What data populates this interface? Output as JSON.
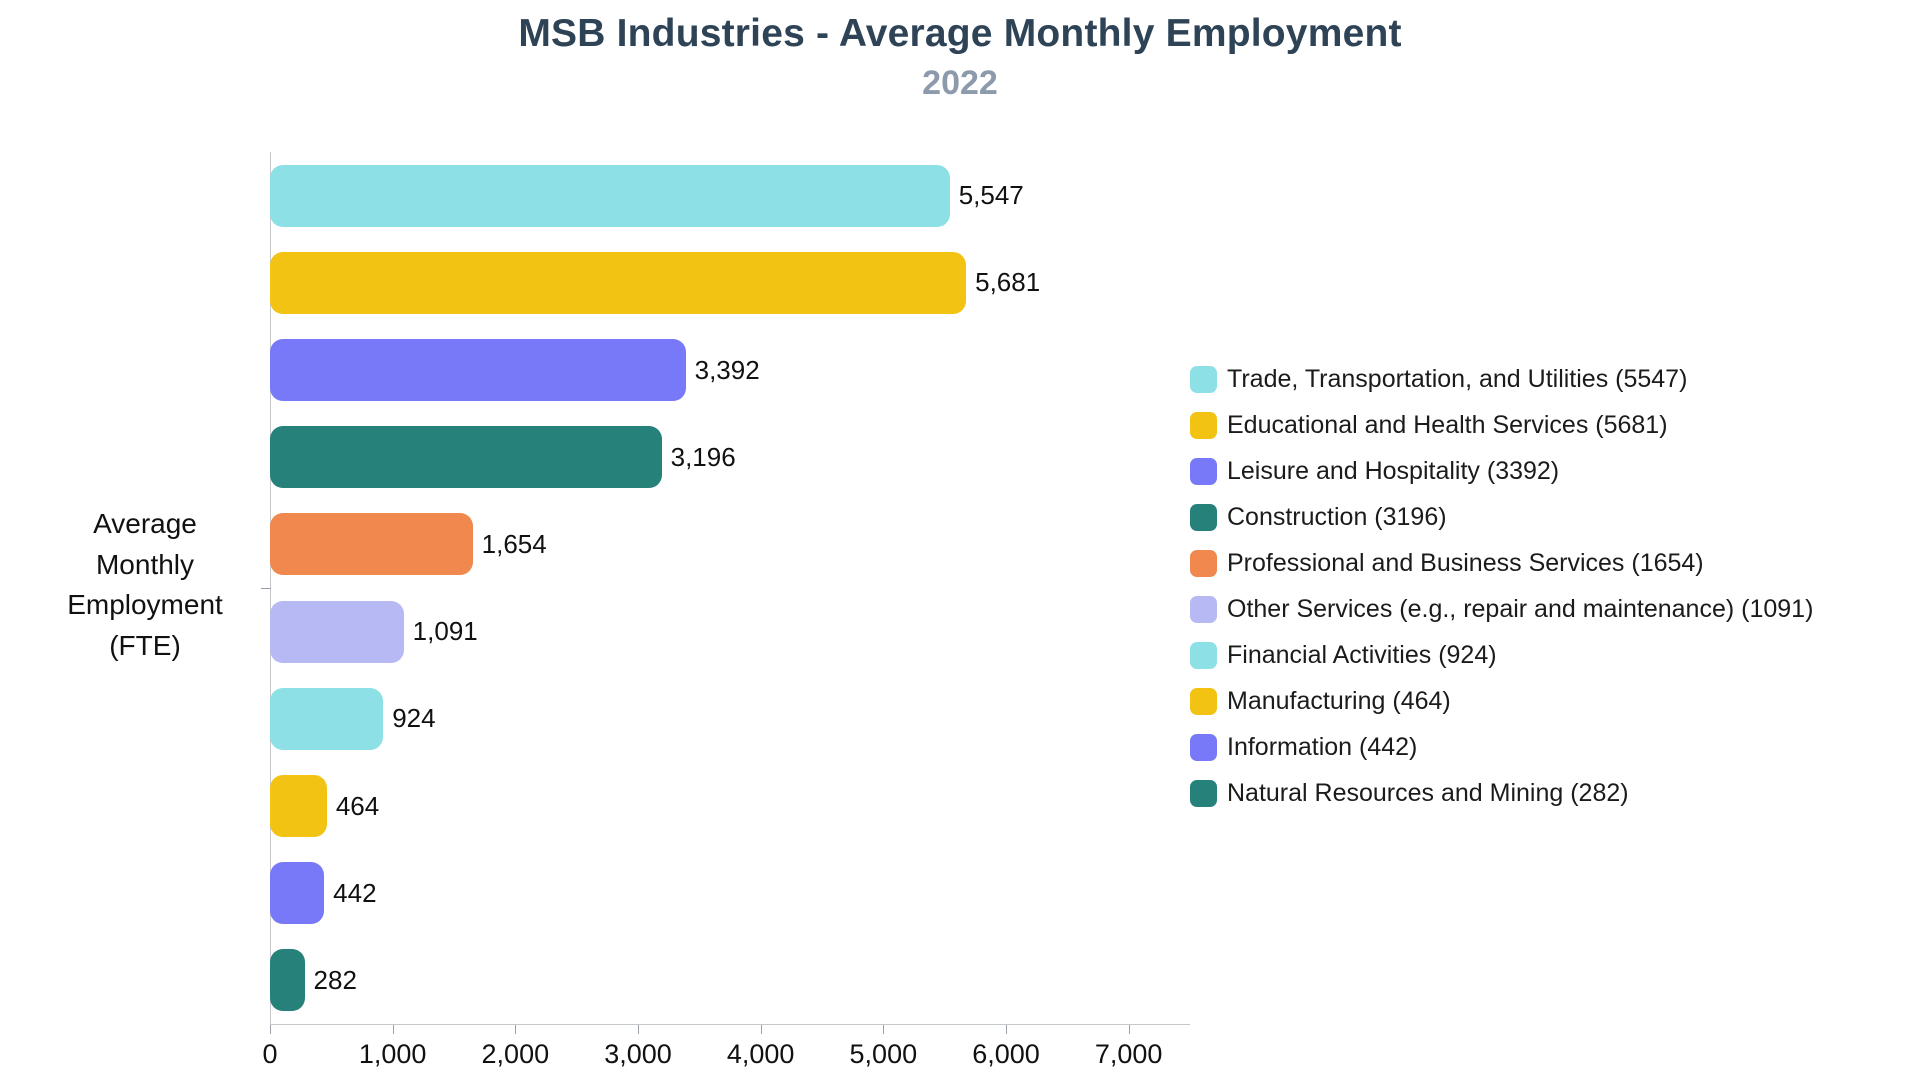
{
  "chart_data": {
    "type": "bar",
    "orientation": "horizontal",
    "title": "MSB Industries - Average Monthly Employment",
    "subtitle": "2022",
    "y_axis_label": "Average\nMonthly\nEmployment\n(FTE)",
    "xlim": [
      0,
      7500
    ],
    "tick_step": 1000,
    "x_ticks": [
      "0",
      "1,000",
      "2,000",
      "3,000",
      "4,000",
      "5,000",
      "6,000",
      "7,000"
    ],
    "grid": "off",
    "legend_position": "right",
    "series": [
      {
        "label": "Trade, Transportation, and Utilities",
        "value": 5547,
        "display_value": "5,547",
        "legend_label": "Trade, Transportation, and Utilities (5547)",
        "color": "#8de1e6"
      },
      {
        "label": "Educational and Health Services",
        "value": 5681,
        "display_value": "5,681",
        "legend_label": "Educational and Health Services (5681)",
        "color": "#f2c313"
      },
      {
        "label": "Leisure and Hospitality",
        "value": 3392,
        "display_value": "3,392",
        "legend_label": "Leisure and Hospitality (3392)",
        "color": "#7879f8"
      },
      {
        "label": "Construction",
        "value": 3196,
        "display_value": "3,196",
        "legend_label": "Construction (3196)",
        "color": "#26817b"
      },
      {
        "label": "Professional and Business Services",
        "value": 1654,
        "display_value": "1,654",
        "legend_label": "Professional and Business Services (1654)",
        "color": "#f1884e"
      },
      {
        "label": "Other Services (e.g., repair and maintenance)",
        "value": 1091,
        "display_value": "1,091",
        "legend_label": "Other Services (e.g., repair and maintenance) (1091)",
        "color": "#b7b9f4"
      },
      {
        "label": "Financial Activities",
        "value": 924,
        "display_value": "924",
        "legend_label": "Financial Activities (924)",
        "color": "#8de1e6"
      },
      {
        "label": "Manufacturing",
        "value": 464,
        "display_value": "464",
        "legend_label": "Manufacturing (464)",
        "color": "#f2c313"
      },
      {
        "label": "Information",
        "value": 442,
        "display_value": "442",
        "legend_label": "Information (442)",
        "color": "#7879f8"
      },
      {
        "label": "Natural Resources and Mining",
        "value": 282,
        "display_value": "282",
        "legend_label": "Natural Resources and Mining (282)",
        "color": "#26817b"
      }
    ],
    "colors": {
      "title": "#2e4356",
      "subtitle": "#8c9aab",
      "axis_line": "#c4c7cc",
      "tick_mark": "#9aa0a6",
      "text": "#111111"
    }
  }
}
